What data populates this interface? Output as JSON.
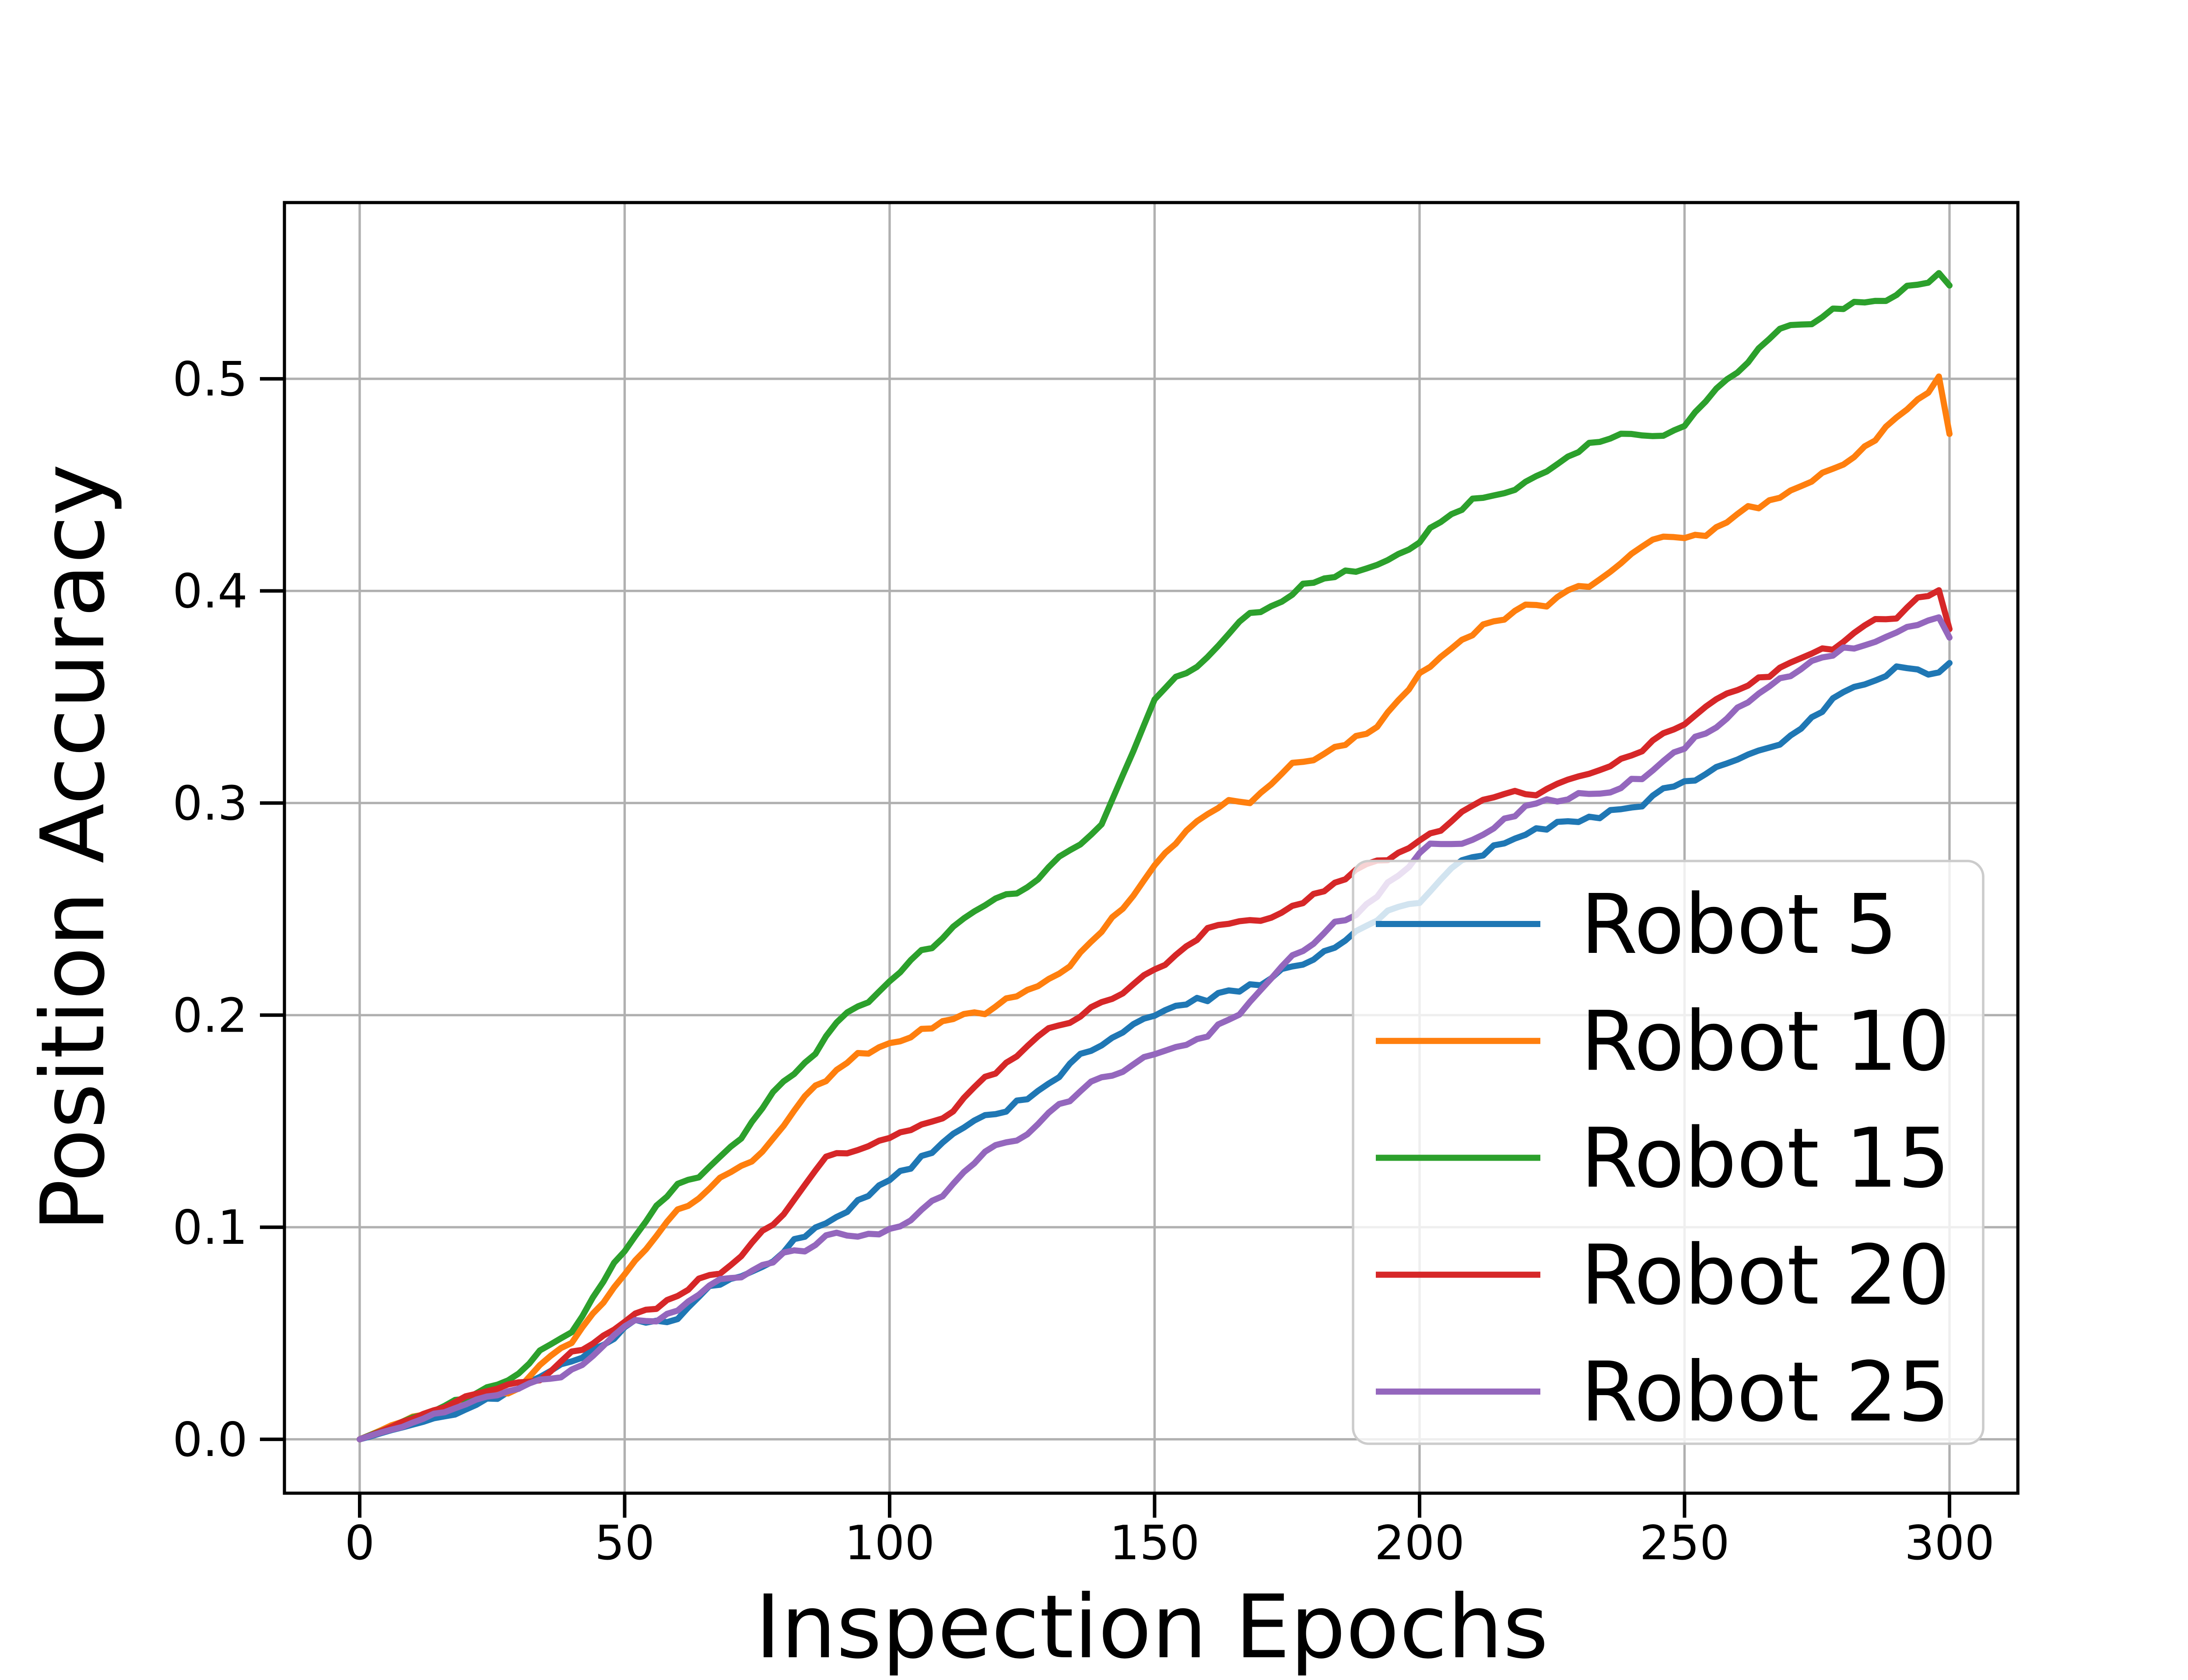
{
  "figure": {
    "background": "#ffffff",
    "plot_border_color": "#000000",
    "grid_color": "#b0b0b0"
  },
  "chart_data": {
    "type": "line",
    "title": "",
    "xlabel": "Inspection Epochs",
    "ylabel": "Position Accuracy",
    "x_ticks": [
      0,
      50,
      100,
      150,
      200,
      250,
      300
    ],
    "x_tick_labels": [
      "0",
      "50",
      "100",
      "150",
      "200",
      "250",
      "300"
    ],
    "y_ticks": [
      0.0,
      0.1,
      0.2,
      0.3,
      0.4,
      0.5
    ],
    "y_tick_labels": [
      "0.0",
      "0.1",
      "0.2",
      "0.3",
      "0.4",
      "0.5"
    ],
    "xlim": [
      -14.2,
      312.9
    ],
    "ylim": [
      -0.0254,
      0.5831
    ],
    "grid": true,
    "legend_position": "lower-right-inside",
    "x": [
      0,
      10,
      20,
      30,
      40,
      50,
      60,
      70,
      80,
      90,
      100,
      110,
      120,
      130,
      140,
      150,
      160,
      170,
      180,
      190,
      200,
      210,
      220,
      230,
      240,
      250,
      260,
      270,
      280,
      290,
      300
    ],
    "series": [
      {
        "name": "Robot 5",
        "color": "#1f77b4",
        "values": [
          0.0,
          0.007,
          0.015,
          0.023,
          0.034,
          0.05,
          0.059,
          0.074,
          0.09,
          0.107,
          0.125,
          0.14,
          0.15,
          0.165,
          0.185,
          0.198,
          0.203,
          0.214,
          0.227,
          0.247,
          0.257,
          0.272,
          0.283,
          0.291,
          0.301,
          0.314,
          0.323,
          0.335,
          0.353,
          0.366,
          0.363
        ]
      },
      {
        "name": "Robot 10",
        "color": "#ff7f0e",
        "values": [
          0.0,
          0.01,
          0.017,
          0.024,
          0.048,
          0.072,
          0.098,
          0.122,
          0.142,
          0.168,
          0.183,
          0.192,
          0.202,
          0.215,
          0.236,
          0.266,
          0.292,
          0.303,
          0.319,
          0.335,
          0.36,
          0.378,
          0.391,
          0.401,
          0.412,
          0.419,
          0.431,
          0.44,
          0.452,
          0.474,
          0.502
        ]
      },
      {
        "name": "Robot 15",
        "color": "#2ca02c",
        "values": [
          0.0,
          0.01,
          0.018,
          0.027,
          0.052,
          0.085,
          0.116,
          0.135,
          0.164,
          0.197,
          0.211,
          0.231,
          0.25,
          0.267,
          0.293,
          0.345,
          0.366,
          0.385,
          0.401,
          0.412,
          0.424,
          0.446,
          0.458,
          0.469,
          0.476,
          0.478,
          0.499,
          0.522,
          0.533,
          0.544,
          0.556
        ]
      },
      {
        "name": "Robot 20",
        "color": "#d62728",
        "values": [
          0.0,
          0.009,
          0.019,
          0.027,
          0.039,
          0.053,
          0.063,
          0.08,
          0.1,
          0.127,
          0.136,
          0.151,
          0.17,
          0.188,
          0.205,
          0.222,
          0.242,
          0.249,
          0.258,
          0.268,
          0.28,
          0.297,
          0.304,
          0.31,
          0.32,
          0.337,
          0.349,
          0.36,
          0.369,
          0.382,
          0.4
        ]
      },
      {
        "name": "Robot 25",
        "color": "#9467bd",
        "values": [
          0.0,
          0.008,
          0.016,
          0.025,
          0.033,
          0.047,
          0.057,
          0.072,
          0.086,
          0.097,
          0.103,
          0.119,
          0.135,
          0.152,
          0.172,
          0.188,
          0.202,
          0.22,
          0.236,
          0.253,
          0.275,
          0.288,
          0.299,
          0.306,
          0.316,
          0.326,
          0.344,
          0.356,
          0.367,
          0.378,
          0.394
        ]
      }
    ]
  }
}
